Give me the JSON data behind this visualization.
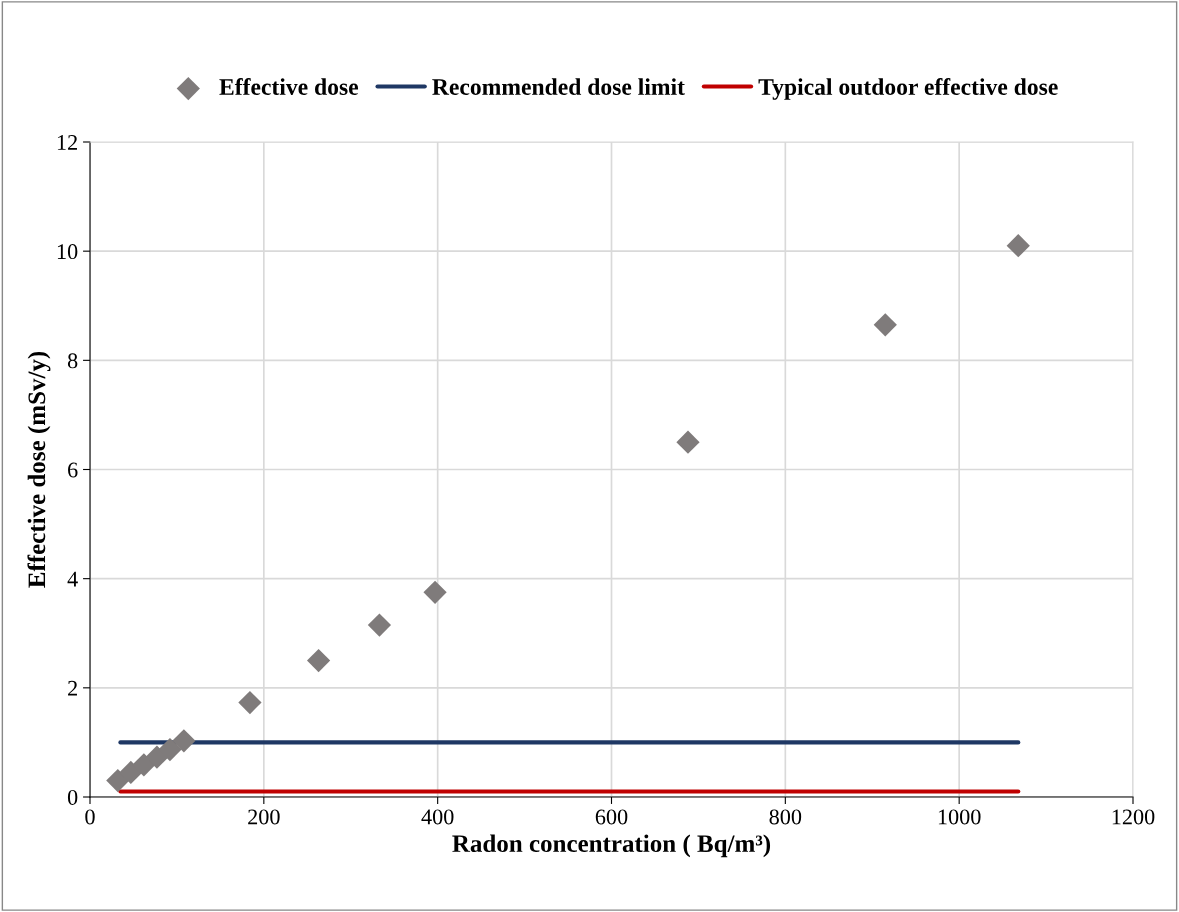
{
  "chart_data": {
    "type": "scatter",
    "xlabel": "Radon concentration ( Bq/m³)",
    "ylabel": "Effective dose (mSv/y)",
    "xlim": [
      0,
      1200
    ],
    "xticks": [
      0,
      200,
      400,
      600,
      800,
      1000,
      1200
    ],
    "ylim": [
      0,
      12
    ],
    "yticks": [
      0,
      2,
      4,
      6,
      8,
      10,
      12
    ],
    "grid": true,
    "legend": "top",
    "series": [
      {
        "name": "Effective dose",
        "marker": "diamond",
        "color": "#7f7b7b",
        "x": [
          32,
          47,
          62,
          77,
          92,
          108,
          184,
          263,
          333,
          397,
          688,
          915,
          1068
        ],
        "values": [
          0.3,
          0.45,
          0.59,
          0.73,
          0.87,
          1.03,
          1.73,
          2.5,
          3.15,
          3.75,
          6.5,
          8.65,
          10.1
        ]
      },
      {
        "name": "Recommended dose limit",
        "type": "line",
        "color": "#1f3864",
        "x": [
          35,
          1068
        ],
        "values": [
          1,
          1
        ]
      },
      {
        "name": "Typical outdoor effective dose",
        "type": "line",
        "color": "#c00000",
        "x": [
          35,
          1068
        ],
        "values": [
          0.1,
          0.1
        ]
      }
    ]
  }
}
